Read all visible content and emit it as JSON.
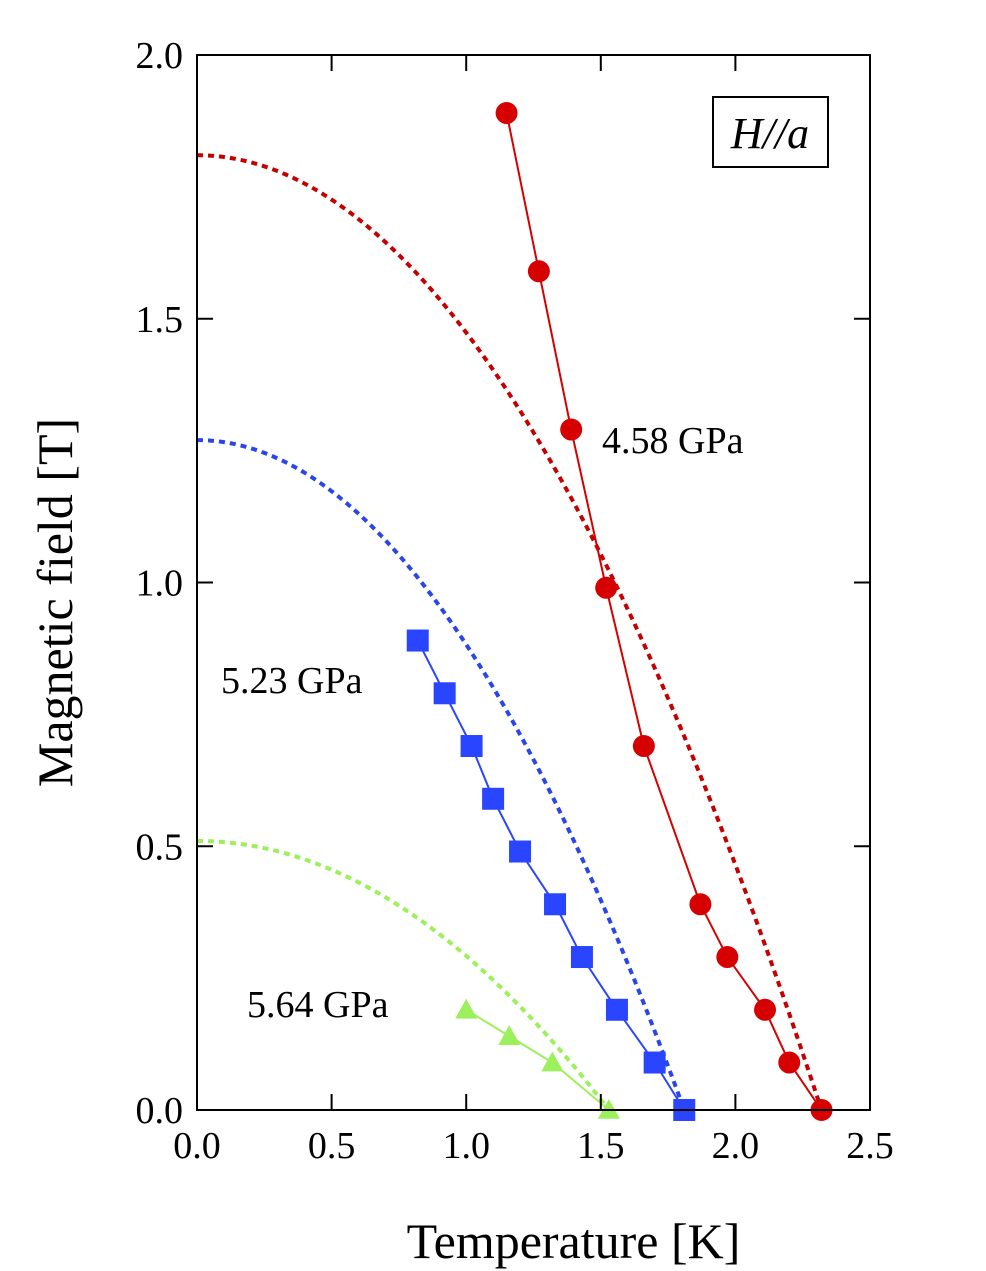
{
  "chart_data": {
    "type": "scatter",
    "xlabel": "Temperature [K]",
    "ylabel": "Magnetic field [T]",
    "xlim": [
      0,
      2.5
    ],
    "ylim": [
      0,
      2.0
    ],
    "x_ticks": [
      "0.0",
      "0.5",
      "1.0",
      "1.5",
      "2.0",
      "2.5"
    ],
    "y_ticks": [
      "0.0",
      "0.5",
      "1.0",
      "1.5",
      "2.0"
    ],
    "grid": false,
    "annotation": "H//a",
    "series": [
      {
        "name": "4.58 GPa",
        "color": "#d60000",
        "marker": "circle",
        "x": [
          1.15,
          1.27,
          1.39,
          1.52,
          1.66,
          1.87,
          1.97,
          2.11,
          2.2,
          2.32
        ],
        "y": [
          1.89,
          1.59,
          1.29,
          0.99,
          0.69,
          0.39,
          0.29,
          0.19,
          0.09,
          0.0
        ],
        "fit_color": "#c40000",
        "fit_T0": 2.32,
        "fit_H0": 1.81
      },
      {
        "name": "5.23 GPa",
        "color": "#2a45ff",
        "marker": "square",
        "x": [
          0.82,
          0.92,
          1.02,
          1.1,
          1.2,
          1.33,
          1.43,
          1.56,
          1.7,
          1.81
        ],
        "y": [
          0.89,
          0.79,
          0.69,
          0.59,
          0.49,
          0.39,
          0.29,
          0.19,
          0.09,
          0.0
        ],
        "fit_color": "#2a45e8",
        "fit_T0": 1.81,
        "fit_H0": 1.27
      },
      {
        "name": "5.64 GPa",
        "color": "#9cf05c",
        "marker": "triangle",
        "x": [
          1.0,
          1.16,
          1.32,
          1.53
        ],
        "y": [
          0.19,
          0.14,
          0.09,
          0.0
        ],
        "fit_color": "#9cf05c",
        "fit_T0": 1.53,
        "fit_H0": 0.51
      }
    ]
  }
}
